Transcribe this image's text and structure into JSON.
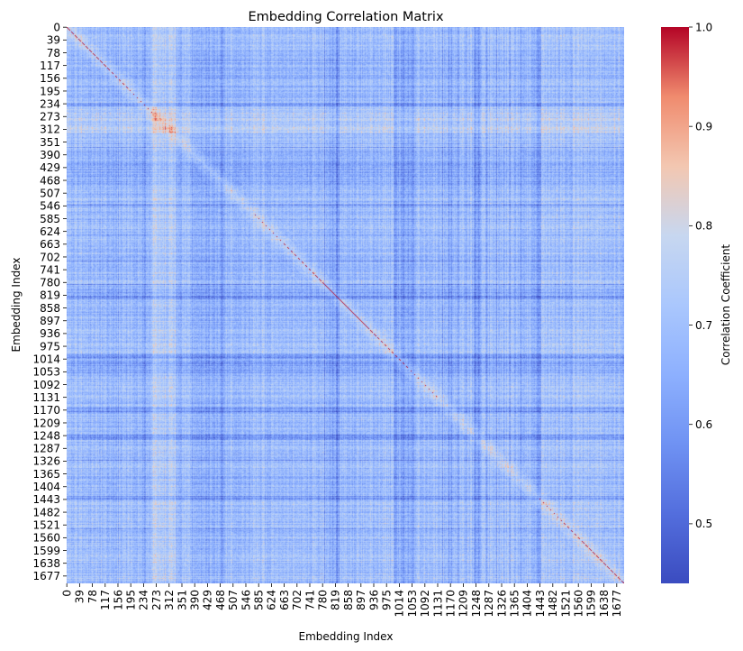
{
  "chart_data": {
    "type": "heatmap",
    "title": "Embedding Correlation Matrix",
    "xlabel": "Embedding Index",
    "ylabel": "Embedding Index",
    "size": 1700,
    "tick_labels": [
      "0",
      "39",
      "78",
      "117",
      "156",
      "195",
      "234",
      "273",
      "312",
      "351",
      "390",
      "429",
      "468",
      "507",
      "546",
      "585",
      "624",
      "663",
      "702",
      "741",
      "780",
      "819",
      "858",
      "897",
      "936",
      "975",
      "1014",
      "1053",
      "1092",
      "1131",
      "1170",
      "1209",
      "1248",
      "1287",
      "1326",
      "1365",
      "1404",
      "1443",
      "1482",
      "1521",
      "1560",
      "1599",
      "1638",
      "1677"
    ],
    "colormap": "coolwarm",
    "colorbar": {
      "label": "Correlation Coefficient",
      "min": 0.44,
      "max": 1.0,
      "ticks": [
        "0.5",
        "0.6",
        "0.7",
        "0.8",
        "0.9",
        "1.0"
      ],
      "tick_values": [
        0.5,
        0.6,
        0.7,
        0.8,
        0.9,
        1.0
      ]
    },
    "diagonal_value": 1.0,
    "typical_range": [
      0.55,
      0.85
    ],
    "colors": {
      "low": "#3b4cc0",
      "mid": "#dddddd",
      "high": "#b40426"
    }
  }
}
